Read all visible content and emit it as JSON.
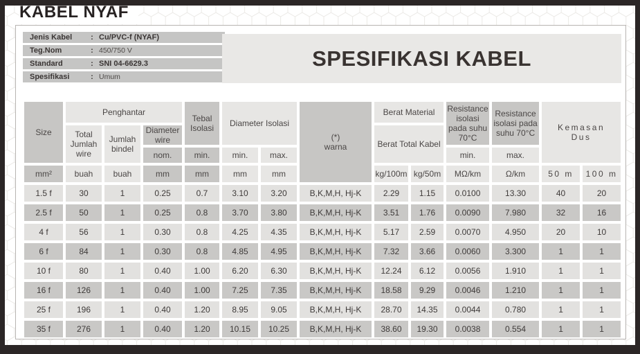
{
  "window": {
    "title": "KABEL NYAF"
  },
  "info_panel": {
    "rows": [
      {
        "label": "Jenis Kabel",
        "sep": ":",
        "value": "Cu/PVC-f (NYAF)"
      },
      {
        "label": "Teg.Nom",
        "sep": ":",
        "value": "450/750 V"
      },
      {
        "label": "Standard",
        "sep": ":",
        "value": "SNI 04-6629.3"
      },
      {
        "label": "Spesifikasi",
        "sep": ":",
        "value": "Umum"
      }
    ]
  },
  "spec_banner": {
    "title": "SPESIFIKASI KABEL"
  },
  "table": {
    "headers": {
      "size": "Size",
      "penghantar": "Penghantar",
      "total_jumlah_wire": "Total Jumlah wire",
      "jumlah_bindel": "Jumlah bindel",
      "diameter_wire": "Diameter wire",
      "nom": "nom.",
      "tebal_isolasi": "Tebal Isolasi",
      "tebal_min": "min.",
      "diameter_isolasi": "Diameter Isolasi",
      "di_min": "min.",
      "di_max": "max.",
      "warna_line1": "(*)",
      "warna_line2": "warna",
      "berat_material": "Berat Material",
      "berat_total_kabel": "Berat Total Kabel",
      "resistance_min_title": "Resistance isolasi pada suhu 70°C",
      "resistance_max_title": "Resistance isolasi pada suhu 70°C",
      "res_min": "min.",
      "res_max": "max.",
      "kemasan_line1": "Kemasan",
      "kemasan_line2": "Dus"
    },
    "units": [
      "mm²",
      "buah",
      "buah",
      "mm",
      "mm",
      "mm",
      "mm",
      "kg/100m",
      "kg/50m",
      "MΩ/km",
      "Ω/km",
      "50 m",
      "100 m"
    ],
    "columns": [
      "size",
      "total-jumlah-wire",
      "jumlah-bindel",
      "diameter-wire-nom",
      "tebal-isolasi-min",
      "diameter-isolasi-min",
      "diameter-isolasi-max",
      "warna",
      "berat-kg-100m",
      "berat-kg-50m",
      "resistance-min-mohm-km",
      "resistance-max-ohm-km",
      "kemasan-50m",
      "kemasan-100m"
    ],
    "rows": [
      [
        "1.5 f",
        "30",
        "1",
        "0.25",
        "0.7",
        "3.10",
        "3.20",
        "B,K,M,H, Hj-K",
        "2.29",
        "1.15",
        "0.0100",
        "13.30",
        "40",
        "20"
      ],
      [
        "2.5 f",
        "50",
        "1",
        "0.25",
        "0.8",
        "3.70",
        "3.80",
        "B,K,M,H, Hj-K",
        "3.51",
        "1.76",
        "0.0090",
        "7.980",
        "32",
        "16"
      ],
      [
        "4 f",
        "56",
        "1",
        "0.30",
        "0.8",
        "4.25",
        "4.35",
        "B,K,M,H, Hj-K",
        "5.17",
        "2.59",
        "0.0070",
        "4.950",
        "20",
        "10"
      ],
      [
        "6 f",
        "84",
        "1",
        "0.30",
        "0.8",
        "4.85",
        "4.95",
        "B,K,M,H, Hj-K",
        "7.32",
        "3.66",
        "0.0060",
        "3.300",
        "1",
        "1"
      ],
      [
        "10 f",
        "80",
        "1",
        "0.40",
        "1.00",
        "6.20",
        "6.30",
        "B,K,M,H, Hj-K",
        "12.24",
        "6.12",
        "0.0056",
        "1.910",
        "1",
        "1"
      ],
      [
        "16 f",
        "126",
        "1",
        "0.40",
        "1.00",
        "7.25",
        "7.35",
        "B,K,M,H, Hj-K",
        "18.58",
        "9.29",
        "0.0046",
        "1.210",
        "1",
        "1"
      ],
      [
        "25 f",
        "196",
        "1",
        "0.40",
        "1.20",
        "8.95",
        "9.05",
        "B,K,M,H, Hj-K",
        "28.70",
        "14.35",
        "0.0044",
        "0.780",
        "1",
        "1"
      ],
      [
        "35 f",
        "276",
        "1",
        "0.40",
        "1.20",
        "10.15",
        "10.25",
        "B,K,M,H, Hj-K",
        "38.60",
        "19.30",
        "0.0038",
        "0.554",
        "1",
        "1"
      ]
    ]
  }
}
